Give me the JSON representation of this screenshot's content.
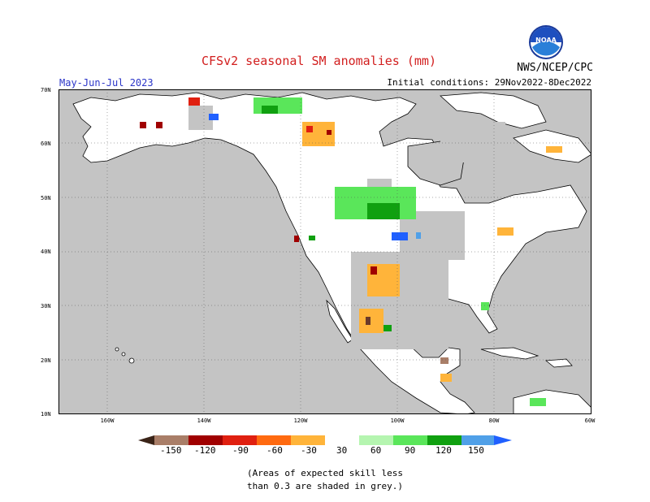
{
  "header": {
    "title": "CFSv2 seasonal SM anomalies (mm)",
    "organization": "NWS/NCEP/CPC",
    "season": "May-Jun-Jul 2023",
    "initial_conditions": "Initial conditions: 29Nov2022-8Dec2022",
    "logo_text": "NOAA"
  },
  "map": {
    "lat_labels": [
      "70N",
      "60N",
      "50N",
      "40N",
      "30N",
      "20N",
      "10N"
    ],
    "lon_labels": [
      "160W",
      "140W",
      "120W",
      "100W",
      "80W",
      "60W"
    ],
    "colors": {
      "ocean": "#c4c4c4",
      "land": "#ffffff",
      "low_skill_land": "#c4c4c4"
    }
  },
  "legend": {
    "labels": [
      "-150",
      "-120",
      "-90",
      "-60",
      "-30",
      "30",
      "60",
      "90",
      "120",
      "150"
    ],
    "colors": [
      "#6b3a2a",
      "#a97e68",
      "#a00000",
      "#e02010",
      "#ff6a10",
      "#ffb43a",
      "#ffffff",
      "#b5f5b0",
      "#5ae65a",
      "#10a010",
      "#50a0e8",
      "#2060ff"
    ]
  },
  "note": {
    "line1": "(Areas of expected skill less",
    "line2": "than 0.3 are shaded in grey.)"
  }
}
